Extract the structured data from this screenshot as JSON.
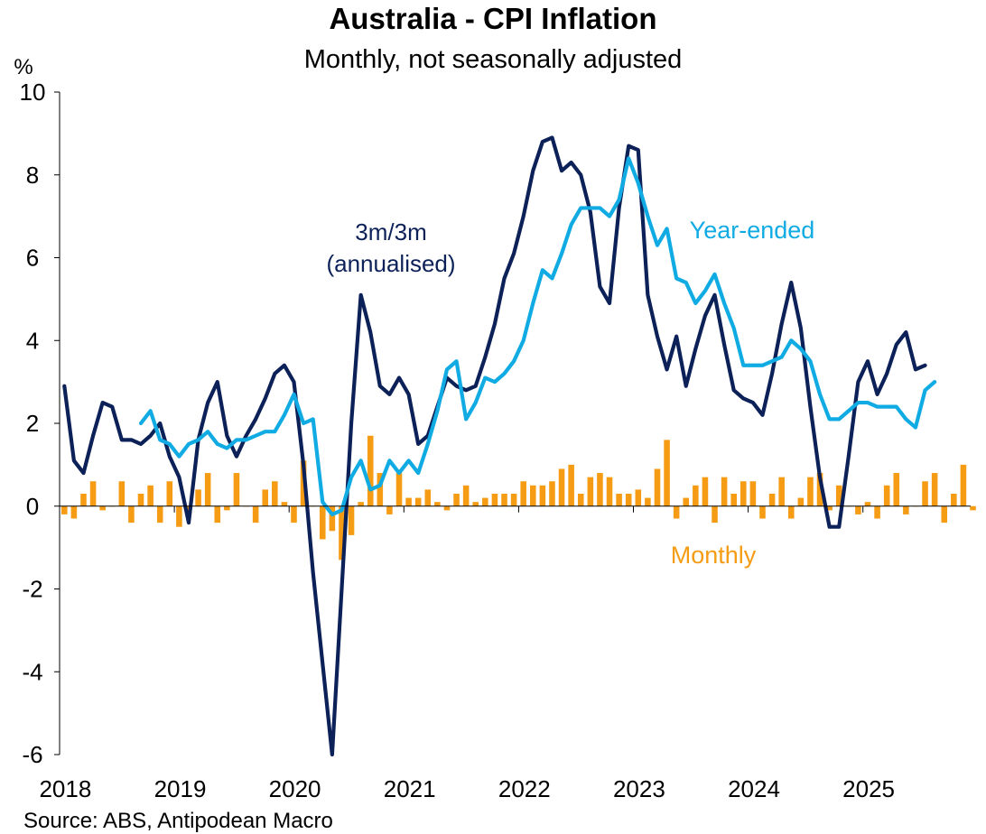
{
  "title": "Australia - CPI Inflation",
  "subtitle": "Monthly, not seasonally adjusted",
  "source": "Source: ABS, Antipodean Macro",
  "chart_data": {
    "type": "line",
    "ylabel": "%",
    "ylim": [
      -6,
      10
    ],
    "yticks": [
      "10",
      "8",
      "6",
      "4",
      "2",
      "0",
      "-2",
      "-4",
      "-6"
    ],
    "ytick_values": [
      10,
      8,
      6,
      4,
      2,
      0,
      -2,
      -4,
      -6
    ],
    "xticks": [
      "2018",
      "2019",
      "2020",
      "2021",
      "2022",
      "2023",
      "2024",
      "2025"
    ],
    "xtick_values": [
      2018,
      2019,
      2020,
      2021,
      2022,
      2023,
      2024,
      2025
    ],
    "xlim": [
      2018,
      2026.0
    ],
    "grid": false,
    "annotations": [
      {
        "text": "3m/3m",
        "series": "3m/3m"
      },
      {
        "text": "(annualised)",
        "series": "3m/3m"
      },
      {
        "text": "Year-ended",
        "series": "Year-ended"
      },
      {
        "text": "Monthly",
        "series": "Monthly"
      }
    ],
    "series": [
      {
        "name": "Monthly",
        "kind": "bar",
        "color": "#F59C14",
        "start": "2018-01",
        "values": [
          -0.2,
          -0.3,
          0.3,
          0.6,
          -0.1,
          0.0,
          0.6,
          -0.4,
          0.3,
          0.5,
          -0.4,
          0.6,
          -0.5,
          -0.2,
          0.4,
          0.8,
          -0.4,
          -0.1,
          0.8,
          0.0,
          -0.4,
          0.4,
          0.6,
          0.1,
          -0.4,
          1.1,
          0.0,
          -0.8,
          -0.6,
          -1.3,
          -0.7,
          0.1,
          1.7,
          0.8,
          -0.2,
          0.8,
          0.2,
          0.2,
          0.4,
          0.1,
          -0.1,
          0.3,
          0.5,
          0.1,
          0.2,
          0.3,
          0.3,
          0.3,
          0.6,
          0.5,
          0.5,
          0.6,
          0.9,
          1.0,
          0.3,
          0.7,
          0.8,
          0.7,
          0.3,
          0.3,
          0.4,
          0.2,
          0.9,
          1.6,
          -0.3,
          0.2,
          0.5,
          0.7,
          -0.4,
          0.7,
          0.3,
          0.6,
          0.6,
          -0.3,
          0.3,
          0.7,
          -0.3,
          0.2,
          0.7,
          0.8,
          -0.1,
          0.5,
          0.0,
          -0.2,
          0.1,
          -0.3,
          0.5,
          0.8,
          -0.2,
          0.0,
          0.6,
          0.8,
          -0.4,
          0.3,
          1.0,
          -0.1
        ]
      },
      {
        "name": "3m/3m",
        "kind": "line",
        "color": "#0D2159",
        "start": "2018-01",
        "values": [
          2.9,
          1.1,
          0.8,
          1.7,
          2.5,
          2.4,
          1.6,
          1.6,
          1.5,
          1.7,
          2.0,
          1.2,
          0.7,
          -0.4,
          1.6,
          2.5,
          3.0,
          1.7,
          1.2,
          1.7,
          2.1,
          2.6,
          3.2,
          3.4,
          3.0,
          1.0,
          -1.6,
          -3.8,
          -6.0,
          -2.0,
          2.0,
          5.1,
          4.2,
          2.9,
          2.7,
          3.1,
          2.7,
          1.5,
          1.7,
          2.4,
          3.1,
          2.9,
          2.8,
          2.9,
          3.6,
          4.4,
          5.5,
          6.1,
          7.0,
          8.1,
          8.8,
          8.9,
          8.1,
          8.3,
          8.0,
          7.1,
          5.3,
          4.9,
          7.2,
          8.7,
          8.6,
          5.1,
          4.1,
          3.3,
          4.1,
          2.9,
          3.8,
          4.6,
          5.1,
          3.9,
          2.8,
          2.6,
          2.5,
          2.2,
          3.2,
          4.4,
          5.4,
          4.3,
          2.4,
          0.7,
          -0.5,
          -0.5,
          1.2,
          3.0,
          3.5,
          2.7,
          3.2,
          3.9,
          4.2,
          3.3,
          3.4
        ]
      },
      {
        "name": "Year-ended",
        "kind": "line",
        "color": "#11ABE4",
        "start": "2018-09",
        "values": [
          2.0,
          2.3,
          1.6,
          1.5,
          1.2,
          1.5,
          1.6,
          1.8,
          1.5,
          1.4,
          1.6,
          1.6,
          1.7,
          1.8,
          1.8,
          2.2,
          2.7,
          2.0,
          2.1,
          0.1,
          -0.2,
          -0.1,
          0.7,
          1.1,
          0.4,
          0.5,
          1.1,
          0.8,
          1.1,
          0.8,
          1.5,
          2.3,
          3.3,
          3.5,
          2.1,
          2.5,
          3.1,
          3.0,
          3.2,
          3.5,
          4.0,
          4.9,
          5.7,
          5.5,
          6.1,
          6.8,
          7.2,
          7.2,
          7.2,
          7.0,
          7.4,
          8.4,
          7.8,
          7.0,
          6.3,
          6.7,
          5.5,
          5.4,
          4.9,
          5.2,
          5.6,
          4.9,
          4.3,
          3.4,
          3.4,
          3.4,
          3.5,
          3.6,
          4.0,
          3.8,
          3.5,
          2.7,
          2.1,
          2.1,
          2.3,
          2.5,
          2.5,
          2.4,
          2.4,
          2.4,
          2.1,
          1.9,
          2.8,
          3.0
        ]
      }
    ]
  }
}
